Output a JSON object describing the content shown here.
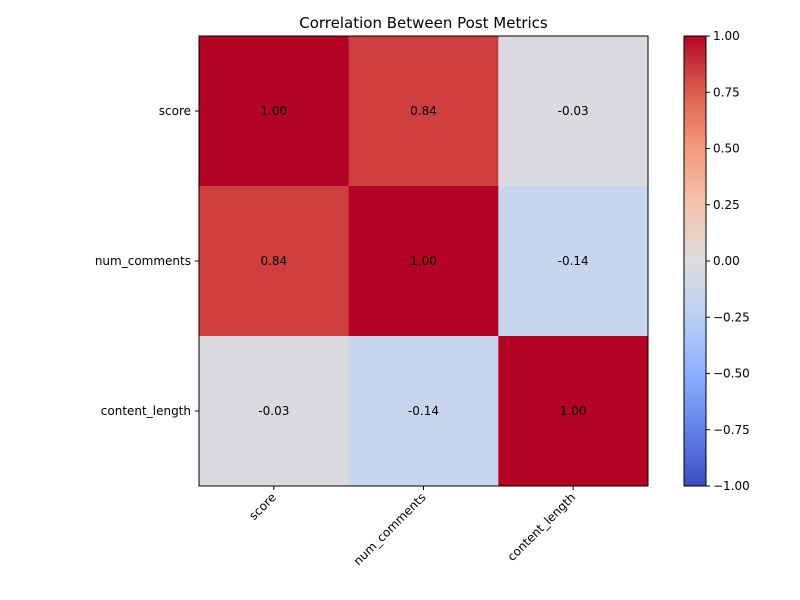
{
  "chart_data": {
    "type": "heatmap",
    "title": "Correlation Between Post Metrics",
    "xlabel": "",
    "ylabel": "",
    "x_categories": [
      "score",
      "num_comments",
      "content_length"
    ],
    "y_categories": [
      "score",
      "num_comments",
      "content_length"
    ],
    "values": [
      [
        1.0,
        0.84,
        -0.03
      ],
      [
        0.84,
        1.0,
        -0.14
      ],
      [
        -0.03,
        -0.14,
        1.0
      ]
    ],
    "value_labels": [
      [
        "1.00",
        "0.84",
        "-0.03"
      ],
      [
        "0.84",
        "1.00",
        "-0.14"
      ],
      [
        "-0.03",
        "-0.14",
        "1.00"
      ]
    ],
    "colormap": "coolwarm",
    "vmin": -1.0,
    "vmax": 1.0,
    "colorbar": {
      "placement": "right",
      "ticks": [
        -1.0,
        -0.75,
        -0.5,
        -0.25,
        0.0,
        0.25,
        0.5,
        0.75,
        1.0
      ],
      "tick_labels": [
        "−1.00",
        "−0.75",
        "−0.50",
        "−0.25",
        "0.00",
        "0.25",
        "0.50",
        "0.75",
        "1.00"
      ]
    },
    "x_tick_rotation_deg": 45,
    "grid": false
  },
  "colors": {
    "low": "#3b4cc0",
    "mid": "#dddddd",
    "high": "#b40426",
    "text_on_dark": "#ffffff",
    "text_on_light": "#000000"
  }
}
